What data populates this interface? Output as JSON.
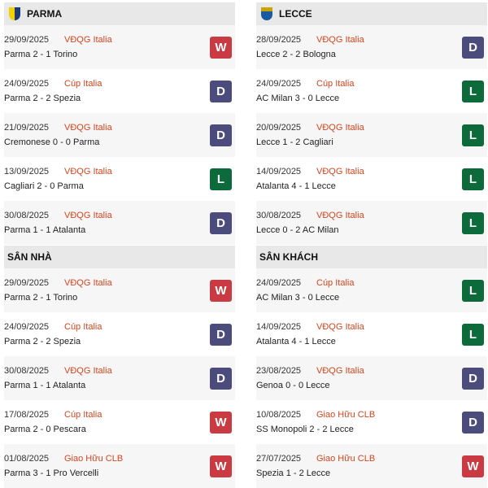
{
  "colors": {
    "W": "#c93a42",
    "D": "#4b4b7c",
    "L": "#0c6a3b",
    "competition": "#d2451e"
  },
  "sections": [
    {
      "title": "PARMA",
      "logo": "parma-crest-icon",
      "matches": [
        {
          "date": "29/09/2025",
          "competition": "VĐQG Italia",
          "score": "Parma 2 - 1 Torino",
          "result": "W"
        },
        {
          "date": "24/09/2025",
          "competition": "Cúp Italia",
          "score": "Parma 2 - 2 Spezia",
          "result": "D"
        },
        {
          "date": "21/09/2025",
          "competition": "VĐQG Italia",
          "score": "Cremonese 0 - 0 Parma",
          "result": "D"
        },
        {
          "date": "13/09/2025",
          "competition": "VĐQG Italia",
          "score": "Cagliari 2 - 0 Parma",
          "result": "L"
        },
        {
          "date": "30/08/2025",
          "competition": "VĐQG Italia",
          "score": "Parma 1 - 1 Atalanta",
          "result": "D"
        }
      ]
    },
    {
      "title": "LECCE",
      "logo": "lecce-crest-icon",
      "matches": [
        {
          "date": "28/09/2025",
          "competition": "VĐQG Italia",
          "score": "Lecce 2 - 2 Bologna",
          "result": "D"
        },
        {
          "date": "24/09/2025",
          "competition": "Cúp Italia",
          "score": "AC Milan 3 - 0 Lecce",
          "result": "L"
        },
        {
          "date": "20/09/2025",
          "competition": "VĐQG Italia",
          "score": "Lecce 1 - 2 Cagliari",
          "result": "L"
        },
        {
          "date": "14/09/2025",
          "competition": "VĐQG Italia",
          "score": "Atalanta 4 - 1 Lecce",
          "result": "L"
        },
        {
          "date": "30/08/2025",
          "competition": "VĐQG Italia",
          "score": "Lecce 0 - 2 AC Milan",
          "result": "L"
        }
      ]
    },
    {
      "title": "SÂN NHÀ",
      "matches": [
        {
          "date": "29/09/2025",
          "competition": "VĐQG Italia",
          "score": "Parma 2 - 1 Torino",
          "result": "W"
        },
        {
          "date": "24/09/2025",
          "competition": "Cúp Italia",
          "score": "Parma 2 - 2 Spezia",
          "result": "D"
        },
        {
          "date": "30/08/2025",
          "competition": "VĐQG Italia",
          "score": "Parma 1 - 1 Atalanta",
          "result": "D"
        },
        {
          "date": "17/08/2025",
          "competition": "Cúp Italia",
          "score": "Parma 2 - 0 Pescara",
          "result": "W"
        },
        {
          "date": "01/08/2025",
          "competition": "Giao Hữu CLB",
          "score": "Parma 3 - 1 Pro Vercelli",
          "result": "W"
        }
      ]
    },
    {
      "title": "SÂN KHÁCH",
      "matches": [
        {
          "date": "24/09/2025",
          "competition": "Cúp Italia",
          "score": "AC Milan 3 - 0 Lecce",
          "result": "L"
        },
        {
          "date": "14/09/2025",
          "competition": "VĐQG Italia",
          "score": "Atalanta 4 - 1 Lecce",
          "result": "L"
        },
        {
          "date": "23/08/2025",
          "competition": "VĐQG Italia",
          "score": "Genoa 0 - 0 Lecce",
          "result": "D"
        },
        {
          "date": "10/08/2025",
          "competition": "Giao Hữu CLB",
          "score": "SS Monopoli 2 - 2 Lecce",
          "result": "D"
        },
        {
          "date": "27/07/2025",
          "competition": "Giao Hữu CLB",
          "score": "Spezia 1 - 2 Lecce",
          "result": "W"
        }
      ]
    }
  ]
}
